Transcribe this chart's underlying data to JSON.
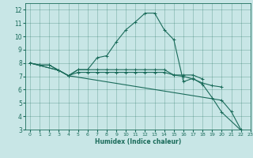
{
  "xlabel": "Humidex (Indice chaleur)",
  "xlim": [
    -0.5,
    23
  ],
  "ylim": [
    3,
    12.5
  ],
  "xticks": [
    0,
    1,
    2,
    3,
    4,
    5,
    6,
    7,
    8,
    9,
    10,
    11,
    12,
    13,
    14,
    15,
    16,
    17,
    18,
    19,
    20,
    21,
    22,
    23
  ],
  "yticks": [
    3,
    4,
    5,
    6,
    7,
    8,
    9,
    10,
    11,
    12
  ],
  "bg_color": "#c8e6e6",
  "line_color": "#1a6b5a",
  "line1_x": [
    0,
    1,
    2,
    3,
    4,
    5,
    6,
    7,
    8,
    9,
    10,
    11,
    12,
    13,
    14,
    15,
    16,
    17,
    18,
    19,
    20,
    22,
    23
  ],
  "line1_y": [
    8.0,
    7.85,
    7.85,
    7.45,
    7.05,
    7.5,
    7.5,
    8.4,
    8.55,
    9.6,
    10.5,
    11.1,
    11.75,
    11.75,
    10.5,
    9.75,
    6.6,
    6.85,
    6.4,
    5.4,
    4.3,
    2.95,
    2.8
  ],
  "line2_x": [
    0,
    1,
    2,
    3,
    4,
    5,
    6,
    7,
    8,
    9,
    10,
    11,
    12,
    13,
    14,
    15,
    16,
    17,
    18
  ],
  "line2_y": [
    8.0,
    7.85,
    7.85,
    7.45,
    7.05,
    7.5,
    7.5,
    7.5,
    7.5,
    7.5,
    7.5,
    7.5,
    7.5,
    7.5,
    7.5,
    7.1,
    7.1,
    7.1,
    6.8
  ],
  "line3_x": [
    0,
    3,
    4,
    5,
    6,
    7,
    8,
    9,
    10,
    11,
    12,
    13,
    14,
    15,
    16,
    17,
    18,
    19,
    20
  ],
  "line3_y": [
    8.0,
    7.45,
    7.05,
    7.3,
    7.3,
    7.3,
    7.3,
    7.3,
    7.3,
    7.3,
    7.3,
    7.3,
    7.3,
    7.1,
    7.0,
    6.8,
    6.5,
    6.3,
    6.2
  ],
  "line4_x": [
    0,
    3,
    4,
    20,
    21,
    22,
    23
  ],
  "line4_y": [
    8.0,
    7.45,
    7.05,
    5.2,
    4.35,
    3.0,
    2.8
  ]
}
